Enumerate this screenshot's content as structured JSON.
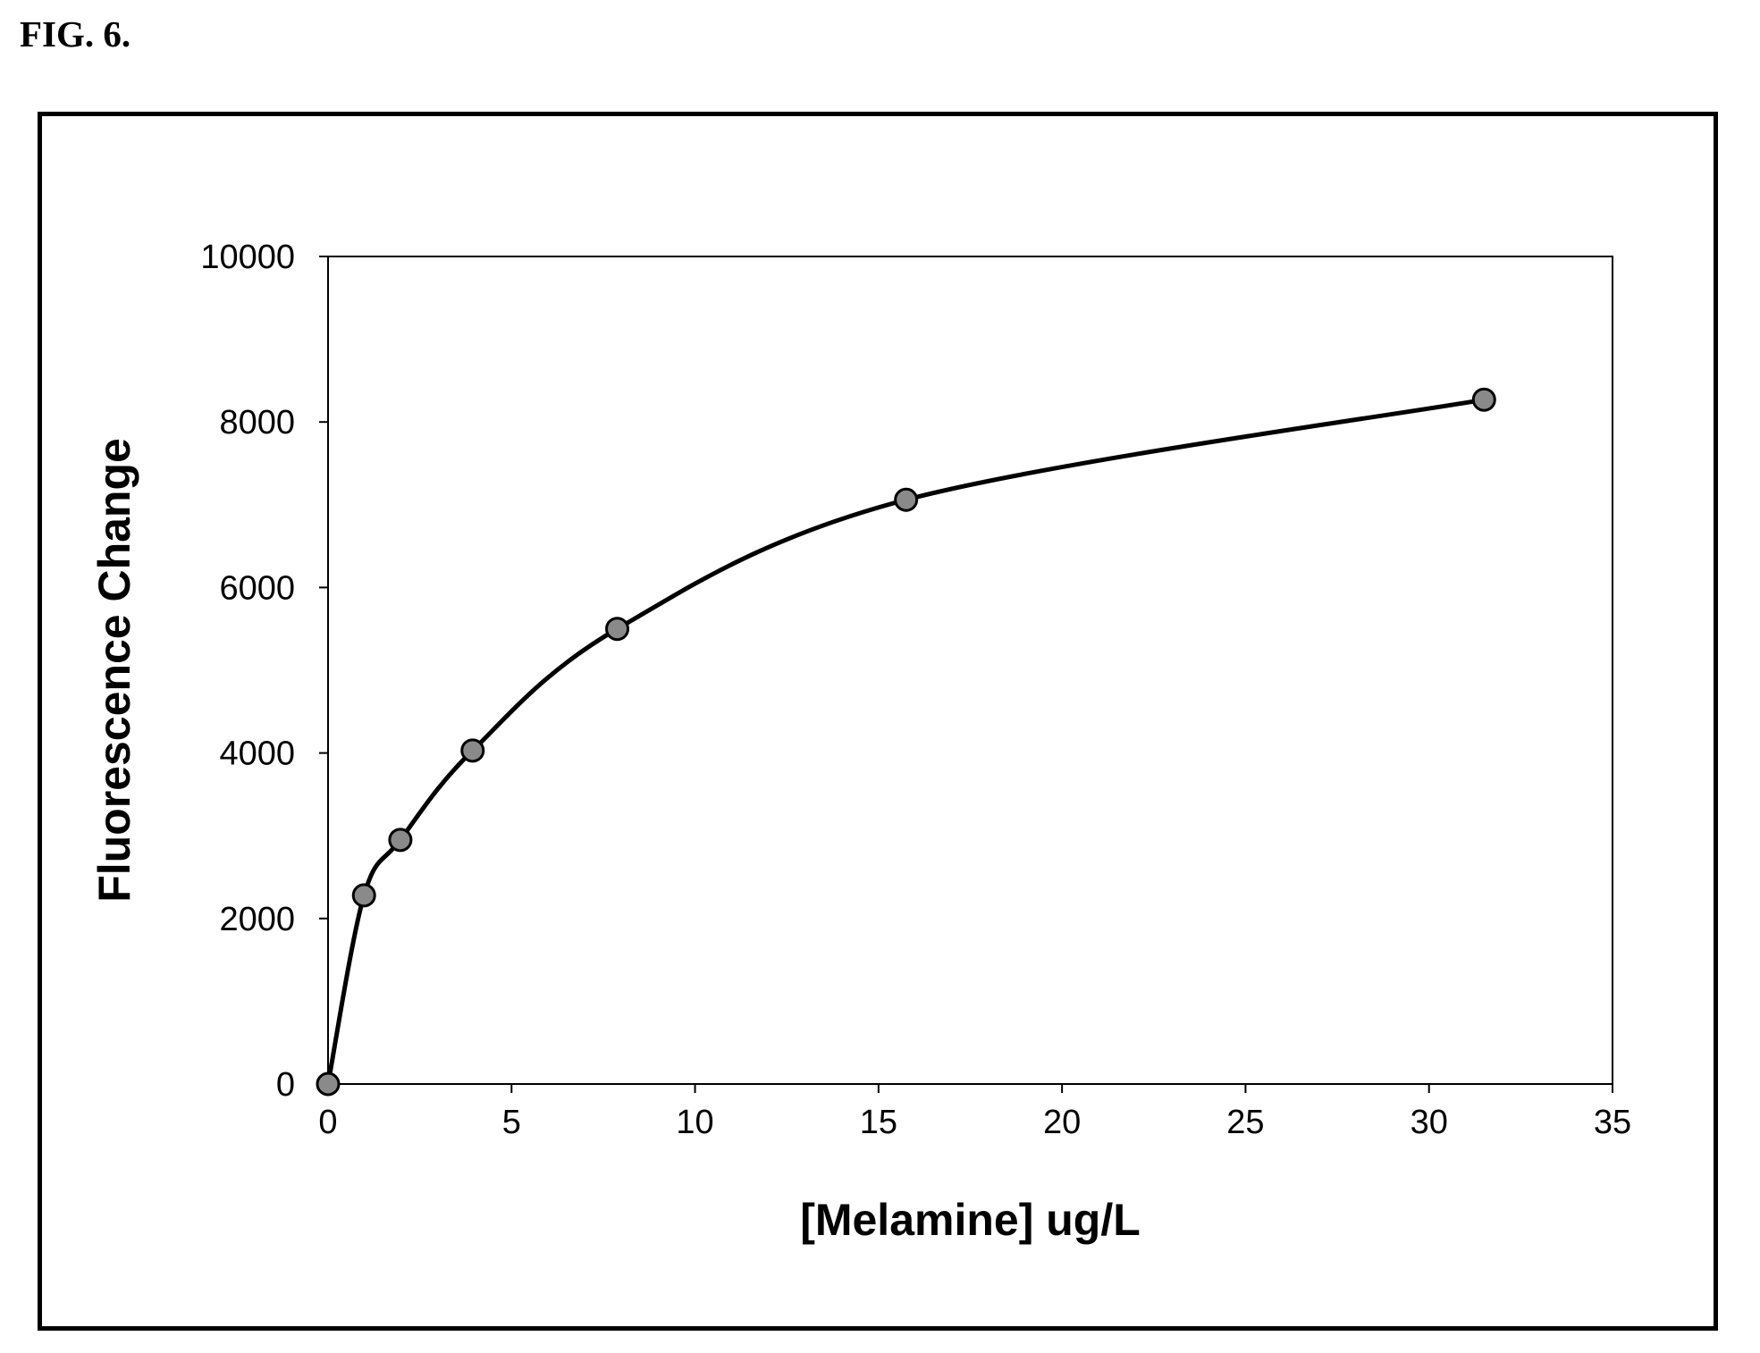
{
  "figure": {
    "label": "FIG. 6."
  },
  "chart_data": {
    "type": "line",
    "title": "",
    "xlabel": "[Melamine] ug/L",
    "ylabel": "Fluorescence Change",
    "xlim": [
      0,
      35
    ],
    "ylim": [
      0,
      10000
    ],
    "xticks": [
      0,
      5,
      10,
      15,
      20,
      25,
      30,
      35
    ],
    "yticks": [
      0,
      2000,
      4000,
      6000,
      8000,
      10000
    ],
    "grid": false,
    "legend": "none",
    "smooth": true,
    "markers": true,
    "series": [
      {
        "x": [
          0,
          0.98,
          1.97,
          3.94,
          7.88,
          15.75,
          31.5
        ],
        "y": [
          0,
          2280,
          2950,
          4030,
          5500,
          7060,
          8270
        ]
      }
    ],
    "colors": {
      "line": "#000000",
      "marker_fill": "#8a8a8a",
      "marker_edge": "#000000"
    }
  }
}
